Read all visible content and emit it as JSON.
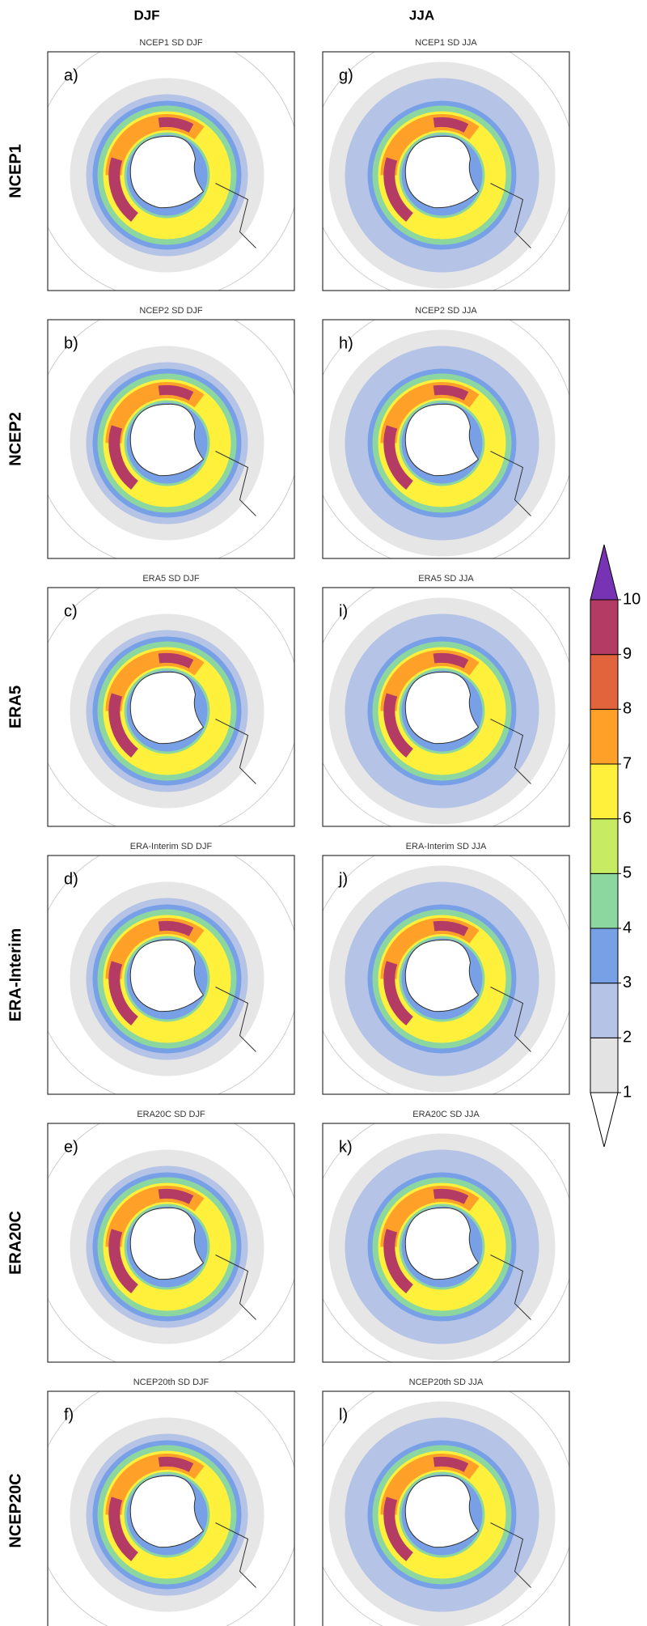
{
  "column_headers": [
    "DJF",
    "JJA"
  ],
  "row_labels": [
    "NCEP1",
    "NCEP2",
    "ERA5",
    "ERA-Interim",
    "ERA20C",
    "NCEP20C"
  ],
  "panels": [
    {
      "label": "a)",
      "title": "NCEP1  SD DJF"
    },
    {
      "label": "b)",
      "title": "NCEP2  SD DJF"
    },
    {
      "label": "c)",
      "title": "ERA5  SD DJF"
    },
    {
      "label": "d)",
      "title": "ERA-Interim  SD DJF"
    },
    {
      "label": "e)",
      "title": "ERA20C  SD DJF"
    },
    {
      "label": "f)",
      "title": "NCEP20th  SD DJF"
    },
    {
      "label": "g)",
      "title": "NCEP1  SD JJA"
    },
    {
      "label": "h)",
      "title": "NCEP2  SD JJA"
    },
    {
      "label": "i)",
      "title": "ERA5  SD JJA"
    },
    {
      "label": "j)",
      "title": "ERA-Interim  SD JJA"
    },
    {
      "label": "k)",
      "title": "ERA20C  SD JJA"
    },
    {
      "label": "l)",
      "title": "NCEP20th  SD JJA"
    }
  ],
  "colorbar": {
    "levels": [
      1,
      2,
      3,
      4,
      5,
      6,
      7,
      8,
      9,
      10
    ],
    "colors": [
      "#ffffff",
      "#e3e3e3",
      "#b4c3e6",
      "#78a0e6",
      "#8cd7a0",
      "#c8eb64",
      "#fff03c",
      "#ffa028",
      "#e1643c",
      "#b43c64",
      "#7832b4"
    ]
  }
}
